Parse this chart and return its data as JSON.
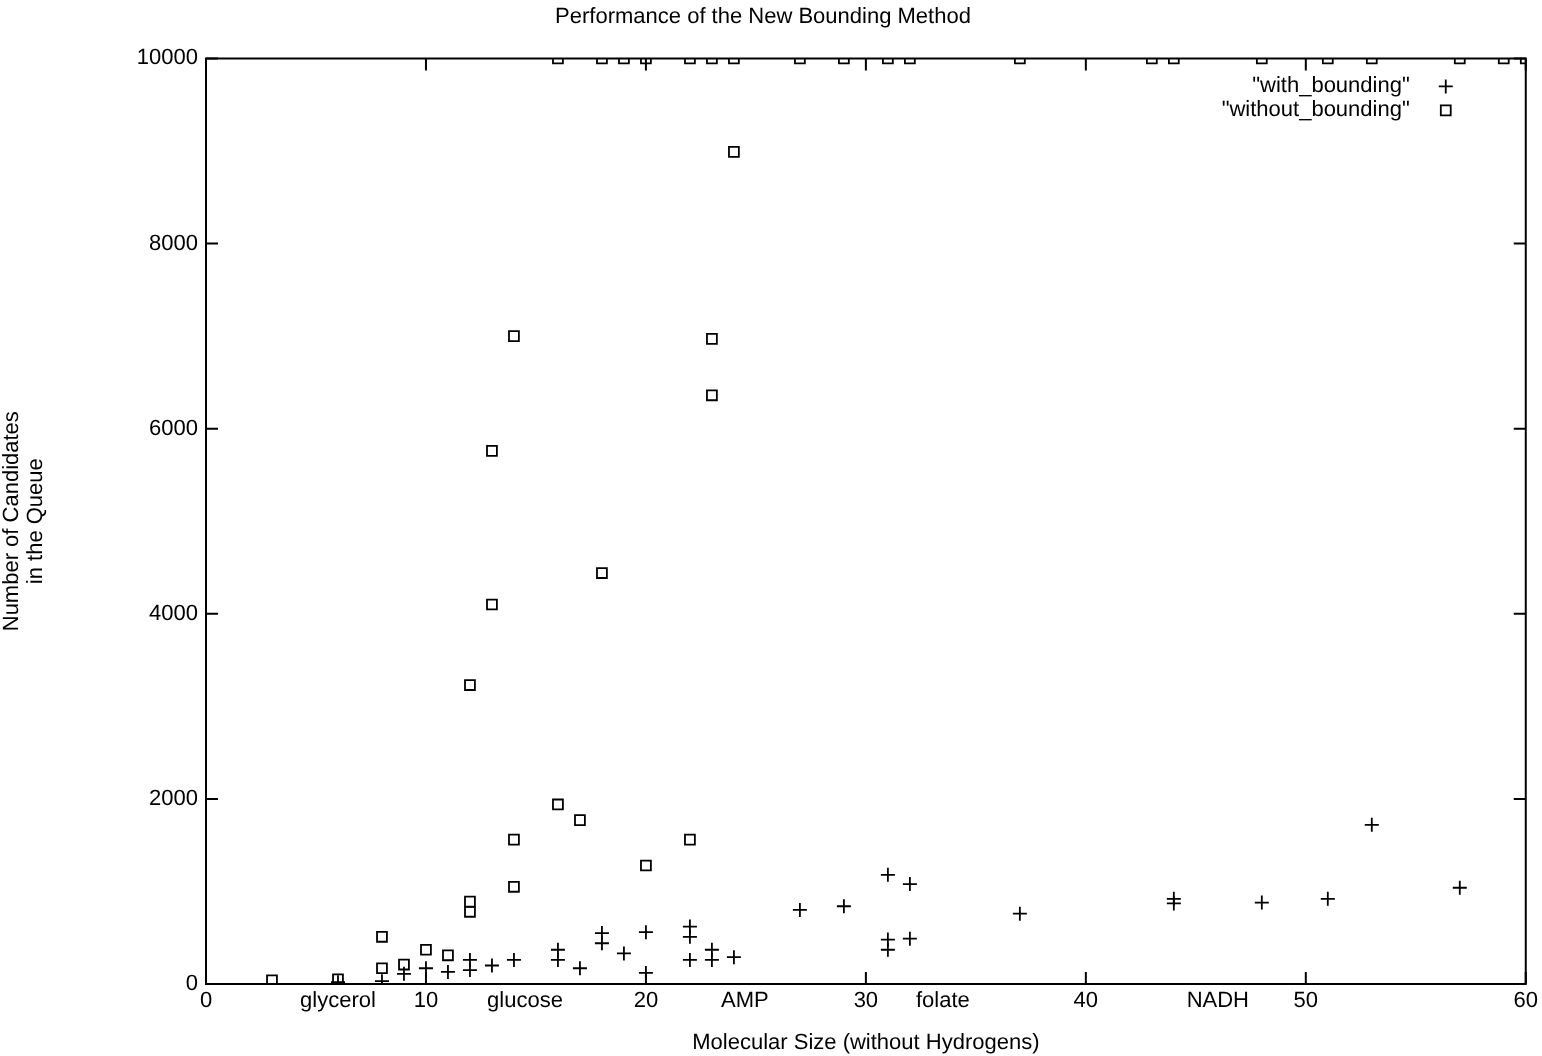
{
  "chart_data": {
    "type": "scatter",
    "title": "Performance of the New Bounding Method",
    "xlabel": "Molecular Size (without Hydrogens)",
    "ylabel": "Number of Candidates in the Queue",
    "xlim": [
      0,
      60
    ],
    "xticks": [
      0,
      {
        "value": 6,
        "label": "glycerol"
      },
      10,
      {
        "value": 14.5,
        "label": "glucose"
      },
      20,
      {
        "value": 24.5,
        "label": "AMP"
      },
      30,
      {
        "value": 33.5,
        "label": "folate"
      },
      40,
      {
        "value": 46,
        "label": "NADH"
      },
      50,
      60
    ],
    "ylim": [
      0,
      10000
    ],
    "yticks": [
      0,
      2000,
      4000,
      6000,
      8000,
      10000
    ],
    "grid": false,
    "legend": "top right",
    "series": [
      {
        "name": "\"with_bounding\"",
        "color": "#000000",
        "marker": "cross",
        "x": [
          6,
          8,
          9,
          10,
          11,
          12,
          12,
          13,
          14,
          16,
          16,
          17,
          18,
          18,
          19,
          20,
          20,
          22,
          22,
          22,
          23,
          23,
          24,
          27,
          29,
          31,
          32,
          31,
          31,
          32,
          37,
          44,
          44,
          48,
          51,
          53,
          57
        ],
        "values": [
          20,
          30,
          110,
          170,
          130,
          260,
          150,
          200,
          260,
          370,
          260,
          170,
          550,
          440,
          330,
          560,
          120,
          620,
          510,
          260,
          370,
          260,
          290,
          800,
          840,
          1180,
          1080,
          480,
          370,
          490,
          760,
          920,
          870,
          880,
          920,
          1720,
          1040
        ]
      },
      {
        "name": "\"without_bounding\"",
        "color": "#000000",
        "marker": "square",
        "x": [
          3,
          6,
          8,
          8,
          9,
          10,
          11,
          12,
          12,
          12,
          13,
          13,
          14,
          14,
          14,
          16,
          17,
          18,
          20,
          22,
          23,
          23,
          24,
          16,
          18,
          19,
          20,
          22,
          23,
          24,
          27,
          29,
          31,
          32,
          37,
          43,
          44,
          48,
          51,
          53,
          57,
          59,
          60
        ],
        "values": [
          40,
          50,
          510,
          170,
          210,
          370,
          310,
          890,
          780,
          3230,
          4100,
          5760,
          7000,
          1560,
          1050,
          1940,
          1770,
          4440,
          1280,
          1560,
          6970,
          6360,
          8990,
          10000,
          10000,
          10000,
          10000,
          10000,
          10000,
          10000,
          10000,
          10000,
          10000,
          10000,
          10000,
          10000,
          10000,
          10000,
          10000,
          10000,
          10000,
          10000,
          10000
        ]
      }
    ]
  }
}
